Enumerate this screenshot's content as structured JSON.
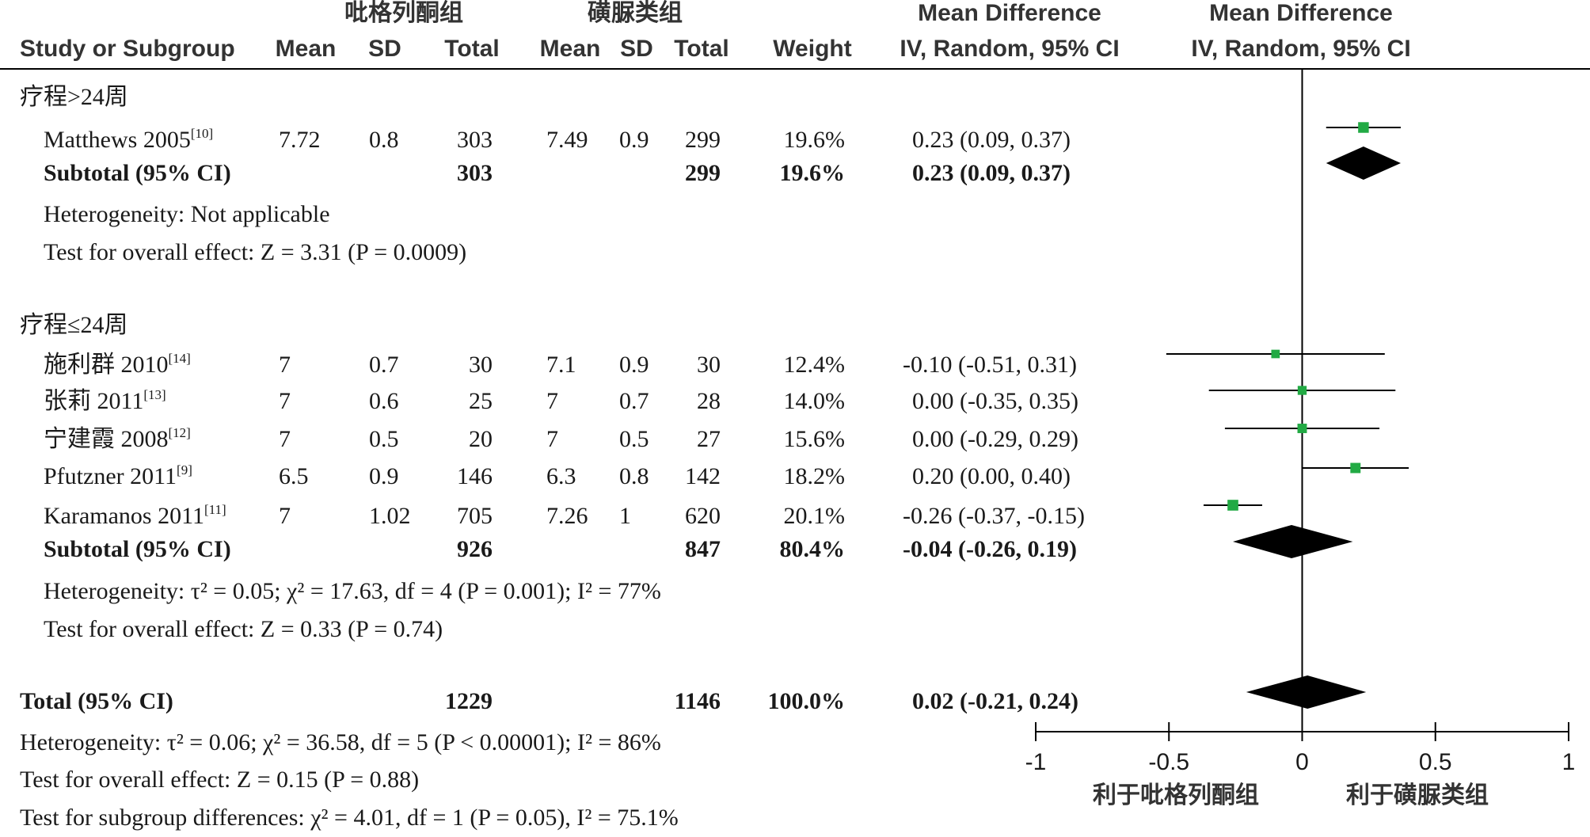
{
  "header": {
    "group1": "吡格列酮组",
    "group2": "磺脲类组",
    "md_title": "Mean Difference",
    "plot_title": "Mean Difference",
    "columns": {
      "study": "Study or Subgroup",
      "mean1": "Mean",
      "sd1": "SD",
      "total1": "Total",
      "mean2": "Mean",
      "sd2": "SD",
      "total2": "Total",
      "weight": "Weight",
      "md_method": "IV, Random, 95% CI",
      "plot_method": "IV, Random, 95% CI"
    }
  },
  "subgroups": [
    {
      "label": "疗程>24周",
      "studies": [
        {
          "name": "Matthews 2005",
          "ref": "[10]",
          "mean1": "7.72",
          "sd1": "0.8",
          "total1": "303",
          "mean2": "7.49",
          "sd2": "0.9",
          "total2": "299",
          "weight": "19.6%",
          "ci": "0.23 (0.09, 0.37)"
        }
      ],
      "subtotal": {
        "label": "Subtotal (95% CI)",
        "total1": "303",
        "total2": "299",
        "weight": "19.6%",
        "ci": "0.23 (0.09, 0.37)"
      },
      "heterogeneity": "Heterogeneity: Not applicable",
      "overall_effect": "Test for overall effect: Z = 3.31 (P = 0.0009)"
    },
    {
      "label": "疗程≤24周",
      "studies": [
        {
          "name": "施利群 2010",
          "ref": "[14]",
          "mean1": "7",
          "sd1": "0.7",
          "total1": "30",
          "mean2": "7.1",
          "sd2": "0.9",
          "total2": "30",
          "weight": "12.4%",
          "ci": "-0.10 (-0.51, 0.31)"
        },
        {
          "name": "张莉 2011",
          "ref": "[13]",
          "mean1": "7",
          "sd1": "0.6",
          "total1": "25",
          "mean2": "7",
          "sd2": "0.7",
          "total2": "28",
          "weight": "14.0%",
          "ci": "0.00 (-0.35, 0.35)"
        },
        {
          "name": "宁建霞 2008",
          "ref": "[12]",
          "mean1": "7",
          "sd1": "0.5",
          "total1": "20",
          "mean2": "7",
          "sd2": "0.5",
          "total2": "27",
          "weight": "15.6%",
          "ci": "0.00 (-0.29, 0.29)"
        },
        {
          "name": "Pfutzner 2011",
          "ref": "[9]",
          "mean1": "6.5",
          "sd1": "0.9",
          "total1": "146",
          "mean2": "6.3",
          "sd2": "0.8",
          "total2": "142",
          "weight": "18.2%",
          "ci": "0.20 (0.00, 0.40)"
        },
        {
          "name": "Karamanos 2011",
          "ref": "[11]",
          "mean1": "7",
          "sd1": "1.02",
          "total1": "705",
          "mean2": "7.26",
          "sd2": "1",
          "total2": "620",
          "weight": "20.1%",
          "ci": "-0.26 (-0.37, -0.15)"
        }
      ],
      "subtotal": {
        "label": "Subtotal (95% CI)",
        "total1": "926",
        "total2": "847",
        "weight": "80.4%",
        "ci": "-0.04 (-0.26, 0.19)"
      },
      "heterogeneity": "Heterogeneity: τ² = 0.05; χ² = 17.63, df = 4 (P = 0.001); I² = 77%",
      "overall_effect": "Test for overall effect: Z = 0.33 (P = 0.74)"
    }
  ],
  "total": {
    "label": "Total (95% CI)",
    "total1": "1229",
    "total2": "1146",
    "weight": "100.0%",
    "ci": "0.02 (-0.21, 0.24)",
    "heterogeneity": "Heterogeneity: τ² = 0.06; χ² = 36.58, df = 5 (P < 0.00001); I² = 86%",
    "overall_effect": "Test for overall effect: Z = 0.15 (P = 0.88)",
    "subgroup_diff": "Test for subgroup differences: χ² = 4.01, df = 1 (P = 0.05), I² = 75.1%"
  },
  "axis": {
    "favours_left": "利于吡格列酮组",
    "favours_right": "利于磺脲类组"
  },
  "colors": {
    "marker": "#22aa44",
    "diamond": "#000000",
    "text": "#1a1a1a",
    "header": "#333333"
  },
  "chart_data": {
    "type": "forest",
    "xlim": [
      -1,
      1
    ],
    "xticks": [
      -1,
      -0.5,
      0,
      0.5,
      1
    ],
    "xtick_labels": [
      "-1",
      "-0.5",
      "0",
      "0.5",
      "1"
    ],
    "studies": [
      {
        "name": "Matthews 2005",
        "md": 0.23,
        "lo": 0.09,
        "hi": 0.37,
        "weight": 19.6
      },
      {
        "name": "施利群 2010",
        "md": -0.1,
        "lo": -0.51,
        "hi": 0.31,
        "weight": 12.4
      },
      {
        "name": "张莉 2011",
        "md": 0.0,
        "lo": -0.35,
        "hi": 0.35,
        "weight": 14.0
      },
      {
        "name": "宁建霞 2008",
        "md": 0.0,
        "lo": -0.29,
        "hi": 0.29,
        "weight": 15.6
      },
      {
        "name": "Pfutzner 2011",
        "md": 0.2,
        "lo": 0.0,
        "hi": 0.4,
        "weight": 18.2
      },
      {
        "name": "Karamanos 2011",
        "md": -0.26,
        "lo": -0.37,
        "hi": -0.15,
        "weight": 20.1
      }
    ],
    "subtotals": [
      {
        "name": "Subtotal 疗程>24周",
        "md": 0.23,
        "lo": 0.09,
        "hi": 0.37
      },
      {
        "name": "Subtotal 疗程≤24周",
        "md": -0.04,
        "lo": -0.26,
        "hi": 0.19
      }
    ],
    "overall": {
      "name": "Total",
      "md": 0.02,
      "lo": -0.21,
      "hi": 0.24
    }
  }
}
